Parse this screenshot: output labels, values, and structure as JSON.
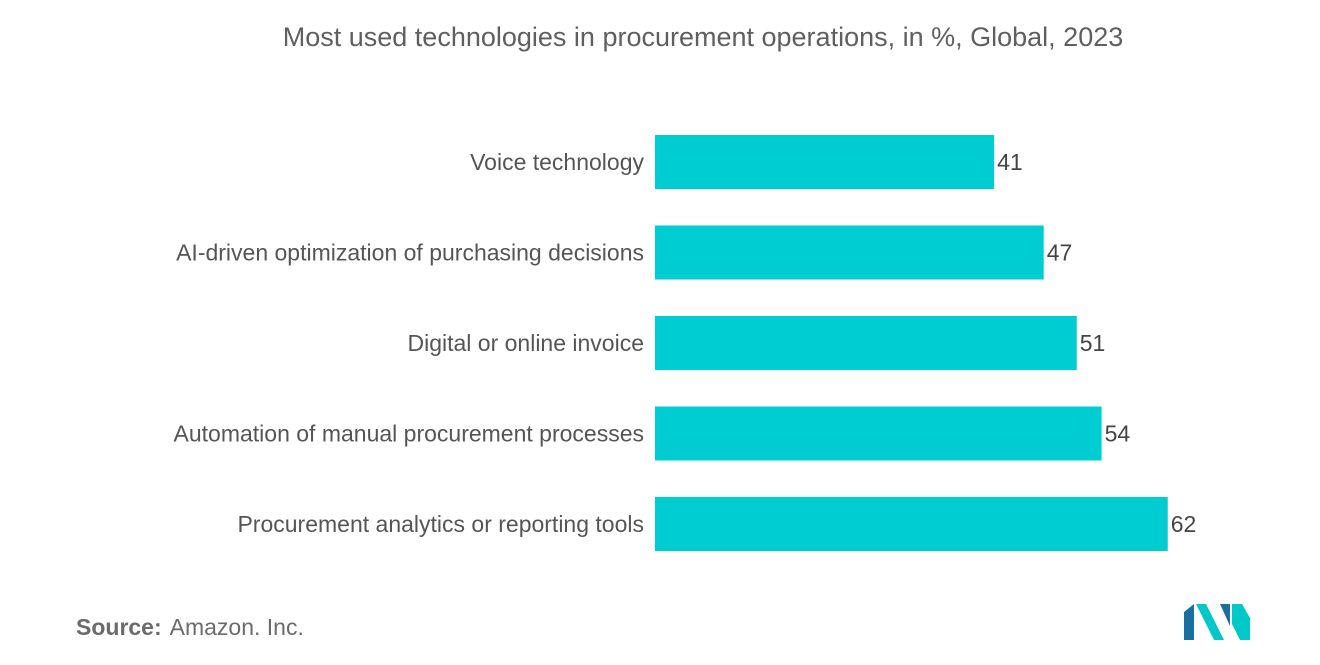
{
  "chart_data": {
    "type": "bar",
    "orientation": "horizontal",
    "title": "Most used technologies in procurement operations, in %, Global, 2023",
    "categories": [
      "Voice technology",
      "AI-driven optimization of purchasing decisions",
      "Digital or online invoice",
      "Automation of manual procurement processes",
      "Procurement analytics or reporting tools"
    ],
    "values": [
      41,
      47,
      51,
      54,
      62
    ],
    "data_labels": [
      "41",
      "47",
      "51",
      "54",
      "62"
    ],
    "bar_color": "#00cdd1",
    "grid": false,
    "legend": "none"
  },
  "source": {
    "label": "Source:",
    "text": "Amazon. Inc."
  },
  "logo": {
    "icon": "mordor-intelligence-logo-icon",
    "colors": [
      "#1b6f9f",
      "#00c8c8"
    ]
  }
}
